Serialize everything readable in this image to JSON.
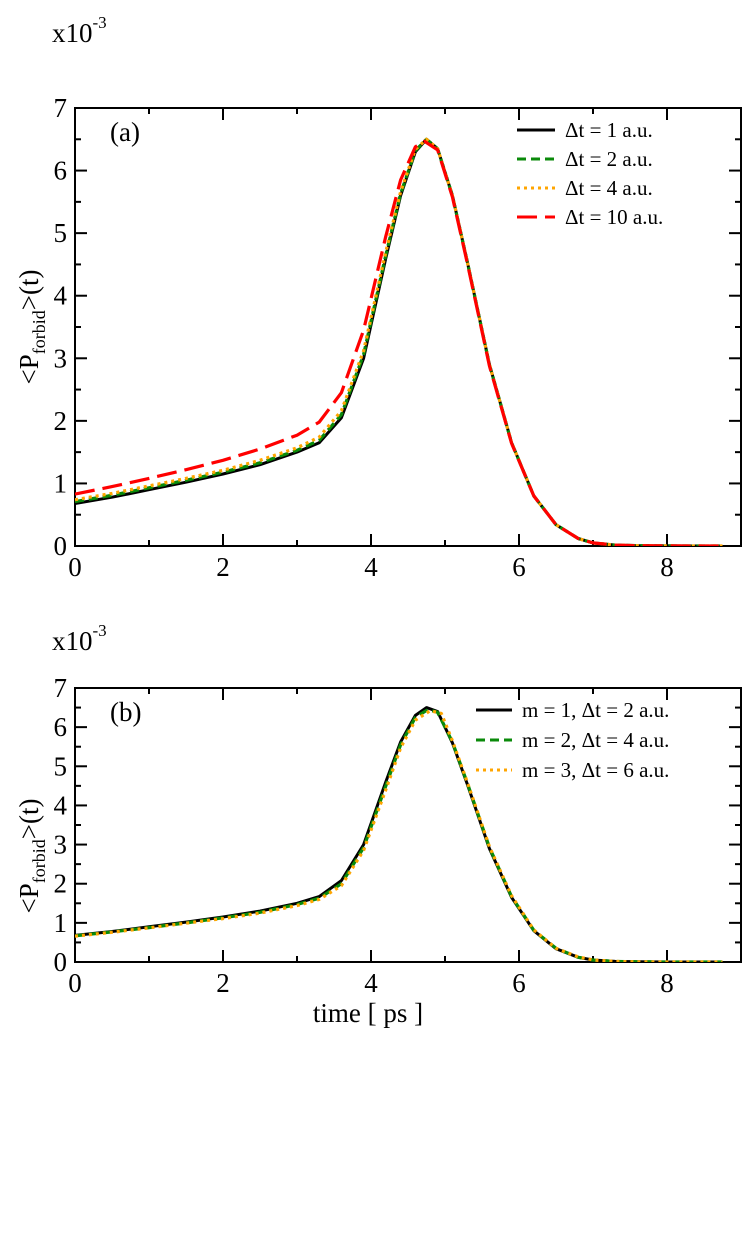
{
  "chart_data": [
    {
      "type": "line",
      "panel_label": "(a)",
      "scale_base": "x10",
      "scale_exponent": "-3",
      "ylabel": {
        "prefix": "<P",
        "subscript": "forbid",
        "suffix": ">(t)"
      },
      "xlabel": "",
      "xlim": [
        0,
        9
      ],
      "ylim": [
        0,
        7
      ],
      "xticks": [
        0,
        2,
        4,
        6,
        8
      ],
      "yticks": [
        0,
        1,
        2,
        3,
        4,
        5,
        6,
        7
      ],
      "legend_position": "top-right",
      "series": [
        {
          "name": "Δt = 1 a.u.",
          "color": "#000000",
          "dash": "solid",
          "x": [
            0,
            0.5,
            1,
            1.5,
            2,
            2.5,
            3,
            3.3,
            3.6,
            3.9,
            4.2,
            4.4,
            4.6,
            4.75,
            4.9,
            5.1,
            5.3,
            5.6,
            5.9,
            6.2,
            6.5,
            6.8,
            7.0,
            7.3,
            7.6,
            8.0,
            8.5,
            8.75
          ],
          "y": [
            0.68,
            0.78,
            0.9,
            1.02,
            1.15,
            1.3,
            1.5,
            1.65,
            2.05,
            3.0,
            4.6,
            5.6,
            6.3,
            6.5,
            6.35,
            5.6,
            4.55,
            2.9,
            1.65,
            0.8,
            0.34,
            0.12,
            0.05,
            0.015,
            0.005,
            0.001,
            0.0,
            0.0
          ]
        },
        {
          "name": "Δt = 2 a.u.",
          "color": "#0a8a0a",
          "dash": "dashed",
          "x": [
            0,
            0.5,
            1,
            1.5,
            2,
            2.5,
            3,
            3.3,
            3.6,
            3.9,
            4.2,
            4.4,
            4.6,
            4.75,
            4.9,
            5.1,
            5.3,
            5.6,
            5.9,
            6.2,
            6.5,
            6.8,
            7.0,
            7.3,
            7.6,
            8.0,
            8.5,
            8.75
          ],
          "y": [
            0.71,
            0.81,
            0.93,
            1.05,
            1.18,
            1.33,
            1.53,
            1.69,
            2.1,
            3.06,
            4.65,
            5.63,
            6.32,
            6.5,
            6.35,
            5.6,
            4.55,
            2.9,
            1.65,
            0.8,
            0.34,
            0.12,
            0.05,
            0.015,
            0.005,
            0.001,
            0.0,
            0.0
          ]
        },
        {
          "name": "Δt = 4 a.u.",
          "color": "#ffa500",
          "dash": "dotted",
          "x": [
            0,
            0.5,
            1,
            1.5,
            2,
            2.5,
            3,
            3.3,
            3.6,
            3.9,
            4.2,
            4.4,
            4.6,
            4.75,
            4.9,
            5.1,
            5.3,
            5.6,
            5.9,
            6.2,
            6.5,
            6.8,
            7.0,
            7.3,
            7.6,
            8.0,
            8.5,
            8.75
          ],
          "y": [
            0.74,
            0.84,
            0.96,
            1.08,
            1.21,
            1.37,
            1.57,
            1.74,
            2.16,
            3.12,
            4.7,
            5.66,
            6.34,
            6.5,
            6.35,
            5.6,
            4.55,
            2.9,
            1.65,
            0.8,
            0.34,
            0.12,
            0.05,
            0.015,
            0.005,
            0.001,
            0.0,
            0.0
          ]
        },
        {
          "name": "Δt = 10 a.u.",
          "color": "#ff0000",
          "dash": "longdash",
          "x": [
            0,
            0.5,
            1,
            1.5,
            2,
            2.5,
            3,
            3.3,
            3.6,
            3.9,
            4.2,
            4.4,
            4.6,
            4.72,
            4.9,
            5.1,
            5.3,
            5.6,
            5.9,
            6.2,
            6.5,
            6.8,
            7.0,
            7.3,
            7.6,
            8.0,
            8.5,
            8.75
          ],
          "y": [
            0.83,
            0.95,
            1.08,
            1.22,
            1.37,
            1.55,
            1.77,
            1.98,
            2.45,
            3.45,
            4.95,
            5.85,
            6.38,
            6.47,
            6.33,
            5.58,
            4.53,
            2.88,
            1.64,
            0.8,
            0.34,
            0.12,
            0.05,
            0.015,
            0.005,
            0.001,
            0.0,
            0.0
          ]
        }
      ]
    },
    {
      "type": "line",
      "panel_label": "(b)",
      "scale_base": "x10",
      "scale_exponent": "-3",
      "ylabel": {
        "prefix": "<P",
        "subscript": "forbid",
        "suffix": ">(t)"
      },
      "xlabel": "time [ ps ]",
      "xlim": [
        0,
        9
      ],
      "ylim": [
        0,
        7
      ],
      "xticks": [
        0,
        2,
        4,
        6,
        8
      ],
      "yticks": [
        0,
        1,
        2,
        3,
        4,
        5,
        6,
        7
      ],
      "legend_position": "top-right",
      "series": [
        {
          "name": "m = 1, Δt = 2 a.u.",
          "color": "#000000",
          "dash": "solid",
          "x": [
            0,
            0.5,
            1,
            1.5,
            2,
            2.5,
            3,
            3.3,
            3.6,
            3.9,
            4.2,
            4.4,
            4.6,
            4.75,
            4.9,
            5.1,
            5.3,
            5.6,
            5.9,
            6.2,
            6.5,
            6.8,
            7.0,
            7.3,
            7.6,
            8.0,
            8.5,
            8.75
          ],
          "y": [
            0.68,
            0.78,
            0.9,
            1.02,
            1.15,
            1.3,
            1.5,
            1.67,
            2.08,
            3.0,
            4.6,
            5.62,
            6.3,
            6.5,
            6.4,
            5.6,
            4.55,
            2.9,
            1.65,
            0.8,
            0.34,
            0.12,
            0.05,
            0.015,
            0.005,
            0.001,
            0.0,
            0.0
          ]
        },
        {
          "name": "m = 2, Δt = 4 a.u.",
          "color": "#0a8a0a",
          "dash": "dashed",
          "x": [
            0,
            0.5,
            1,
            1.5,
            2,
            2.5,
            3,
            3.3,
            3.6,
            3.9,
            4.2,
            4.4,
            4.6,
            4.77,
            4.9,
            5.1,
            5.3,
            5.6,
            5.9,
            6.2,
            6.5,
            6.8,
            7.0,
            7.3,
            7.6,
            8.0,
            8.5,
            8.75
          ],
          "y": [
            0.67,
            0.77,
            0.88,
            1.0,
            1.13,
            1.27,
            1.47,
            1.63,
            2.0,
            2.92,
            4.5,
            5.55,
            6.25,
            6.45,
            6.38,
            5.62,
            4.58,
            2.93,
            1.67,
            0.81,
            0.35,
            0.12,
            0.05,
            0.015,
            0.005,
            0.001,
            0.0,
            0.0
          ]
        },
        {
          "name": "m = 3, Δt = 6 a.u.",
          "color": "#ffa500",
          "dash": "dotted",
          "x": [
            0,
            0.5,
            1,
            1.5,
            2,
            2.5,
            3,
            3.3,
            3.6,
            3.9,
            4.2,
            4.4,
            4.6,
            4.8,
            4.95,
            5.1,
            5.3,
            5.6,
            5.9,
            6.2,
            6.5,
            6.8,
            7.0,
            7.3,
            7.6,
            8.0,
            8.5,
            8.75
          ],
          "y": [
            0.66,
            0.76,
            0.87,
            0.99,
            1.11,
            1.25,
            1.44,
            1.6,
            1.95,
            2.85,
            4.4,
            5.47,
            6.18,
            6.42,
            6.35,
            5.65,
            4.6,
            2.95,
            1.69,
            0.82,
            0.35,
            0.13,
            0.05,
            0.015,
            0.005,
            0.001,
            0.0,
            0.0
          ]
        }
      ]
    }
  ]
}
